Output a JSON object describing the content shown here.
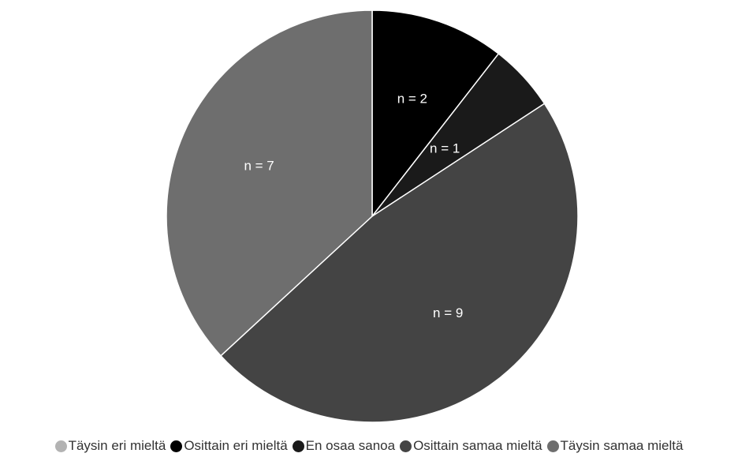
{
  "chart_data": {
    "type": "pie",
    "title": "",
    "start_angle_deg": 0,
    "direction": "clockwise",
    "slices": [
      {
        "label": "Täysin eri mieltä",
        "value": 0,
        "data_label": "",
        "color": "#b3b3b3"
      },
      {
        "label": "Osittain eri mieltä",
        "value": 2,
        "data_label": "n = 2",
        "color": "#000000"
      },
      {
        "label": "En osaa sanoa",
        "value": 1,
        "data_label": "n = 1",
        "color": "#1a1a1a"
      },
      {
        "label": "Osittain samaa mieltä",
        "value": 9,
        "data_label": "n = 9",
        "color": "#444444"
      },
      {
        "label": "Täysin samaa mieltä",
        "value": 7,
        "data_label": "n = 7",
        "color": "#6e6e6e"
      }
    ],
    "legend_position": "bottom",
    "slice_border_color": "#ffffff"
  }
}
